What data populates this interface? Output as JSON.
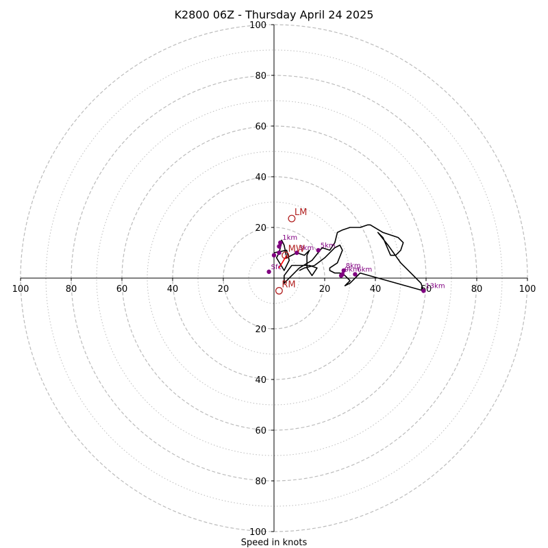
{
  "chart_data": {
    "type": "hodograph",
    "title": "K2800 06Z - Thursday April 24 2025",
    "xlabel": "Speed in knots",
    "max_speed": 100,
    "rings": {
      "major": [
        20,
        40,
        60,
        80,
        100
      ],
      "minor": [
        10,
        30,
        50,
        70,
        90
      ]
    },
    "axis_tick_labels": {
      "x_left": [
        "100",
        "80",
        "60",
        "40",
        "20"
      ],
      "x_right": [
        "20",
        "40",
        "60",
        "80",
        "100"
      ],
      "y_up": [
        "20",
        "40",
        "60",
        "80",
        "100"
      ],
      "y_down": [
        "20",
        "40",
        "60",
        "80",
        "100"
      ]
    },
    "trace": [
      [
        0,
        10
      ],
      [
        5,
        11
      ],
      [
        6,
        7
      ],
      [
        4,
        3
      ],
      [
        1,
        8
      ],
      [
        2,
        10
      ],
      [
        3,
        14
      ],
      [
        3,
        15
      ],
      [
        4,
        13
      ],
      [
        5,
        8
      ],
      [
        9,
        10
      ],
      [
        12,
        9
      ],
      [
        14,
        11
      ],
      [
        13,
        9
      ],
      [
        13,
        4
      ],
      [
        15,
        1
      ],
      [
        17,
        4
      ],
      [
        14,
        5
      ],
      [
        7,
        5
      ],
      [
        4,
        1
      ],
      [
        4,
        -2
      ],
      [
        10,
        4
      ],
      [
        15,
        7
      ],
      [
        19,
        12
      ],
      [
        22,
        11
      ],
      [
        24,
        14
      ],
      [
        25,
        18
      ],
      [
        27,
        19
      ],
      [
        30,
        20
      ],
      [
        34,
        20
      ],
      [
        37,
        21
      ],
      [
        38,
        21
      ],
      [
        43,
        18
      ],
      [
        49,
        16
      ],
      [
        51,
        14
      ],
      [
        50,
        11
      ],
      [
        48,
        9
      ],
      [
        46,
        9
      ],
      [
        43,
        16
      ],
      [
        41,
        18
      ],
      [
        45,
        13
      ],
      [
        50,
        6
      ],
      [
        54,
        2
      ],
      [
        58,
        -2
      ],
      [
        59,
        -5
      ],
      [
        34,
        2
      ],
      [
        30,
        -2
      ],
      [
        28,
        -3
      ],
      [
        30,
        -1
      ],
      [
        28,
        1
      ],
      [
        26,
        2
      ],
      [
        24,
        2
      ],
      [
        22,
        3
      ],
      [
        22,
        4
      ],
      [
        25,
        6
      ],
      [
        27,
        11
      ],
      [
        26,
        13
      ],
      [
        24,
        12
      ],
      [
        20,
        8
      ],
      [
        16,
        5
      ],
      [
        12,
        4
      ],
      [
        10,
        3
      ]
    ],
    "points": [
      {
        "label": "Sfc",
        "u": -2,
        "v": 2.5,
        "color": "#800080"
      },
      {
        "label": "",
        "u": 0,
        "v": 9,
        "color": "#800080"
      },
      {
        "label": "1km",
        "u": 2.5,
        "v": 14,
        "color": "#800080"
      },
      {
        "label": "",
        "u": 2,
        "v": 12.5,
        "color": "#800080"
      },
      {
        "label": "",
        "u": 2,
        "v": 10,
        "color": "#800080"
      },
      {
        "label": "3km",
        "u": 9,
        "v": 10,
        "color": "#800080"
      },
      {
        "label": "5km",
        "u": 17.5,
        "v": 11,
        "color": "#800080"
      },
      {
        "label": "8km",
        "u": 27.5,
        "v": 3,
        "color": "#800080"
      },
      {
        "label": "9km",
        "u": 27,
        "v": 1.5,
        "color": "#800080"
      },
      {
        "label": "",
        "u": 26.5,
        "v": 1,
        "color": "#800080"
      },
      {
        "label": "6km",
        "u": 32,
        "v": 1.5,
        "color": "#800080"
      },
      {
        "label": "13km",
        "u": 59,
        "v": -5,
        "color": "#800080"
      }
    ],
    "red_segment": [
      [
        2,
        4
      ],
      [
        5,
        9
      ]
    ],
    "storm_motions": [
      {
        "label": "LM",
        "u": 7,
        "v": 23.5,
        "color": "#b22222"
      },
      {
        "label": "MW",
        "u": 4.5,
        "v": 9,
        "color": "#b22222"
      },
      {
        "label": "RM",
        "u": 2,
        "v": -5,
        "color": "#b22222"
      }
    ],
    "colors": {
      "trace": "#000000",
      "points": "#800080",
      "storm": "#b22222",
      "rings": "#bbbbbb",
      "axes": "#000000"
    }
  }
}
